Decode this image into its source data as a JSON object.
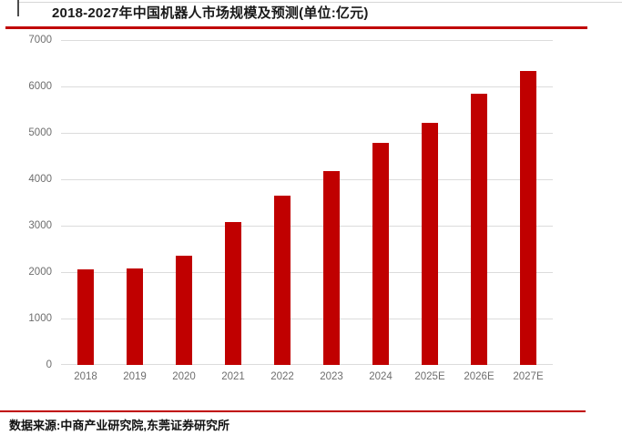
{
  "header": {
    "title": "2018-2027年中国机器人市场规模及预测(单位:亿元)"
  },
  "footer": {
    "source": "数据来源:中商产业研究院,东莞证券研究所"
  },
  "colors": {
    "bar": "#c00000",
    "rule": "#c00000",
    "gridline": "#dcdcdc",
    "tick_text": "#6e6e6e",
    "title_text": "#1a1a1a"
  },
  "chart_data": {
    "type": "bar",
    "title": "2018-2027年中国机器人市场规模及预测(单位:亿元)",
    "unit": "亿元",
    "categories": [
      "2018",
      "2019",
      "2020",
      "2021",
      "2022",
      "2023",
      "2024",
      "2025E",
      "2026E",
      "2027E"
    ],
    "values": [
      2050,
      2080,
      2350,
      3070,
      3640,
      4180,
      4790,
      5220,
      5850,
      6330
    ],
    "xlabel": "",
    "ylabel": "",
    "ylim": [
      0,
      7000
    ],
    "yticks": [
      0,
      1000,
      2000,
      3000,
      4000,
      5000,
      6000,
      7000
    ],
    "grid": true,
    "legend_position": "none",
    "bar_color": "#c00000"
  }
}
